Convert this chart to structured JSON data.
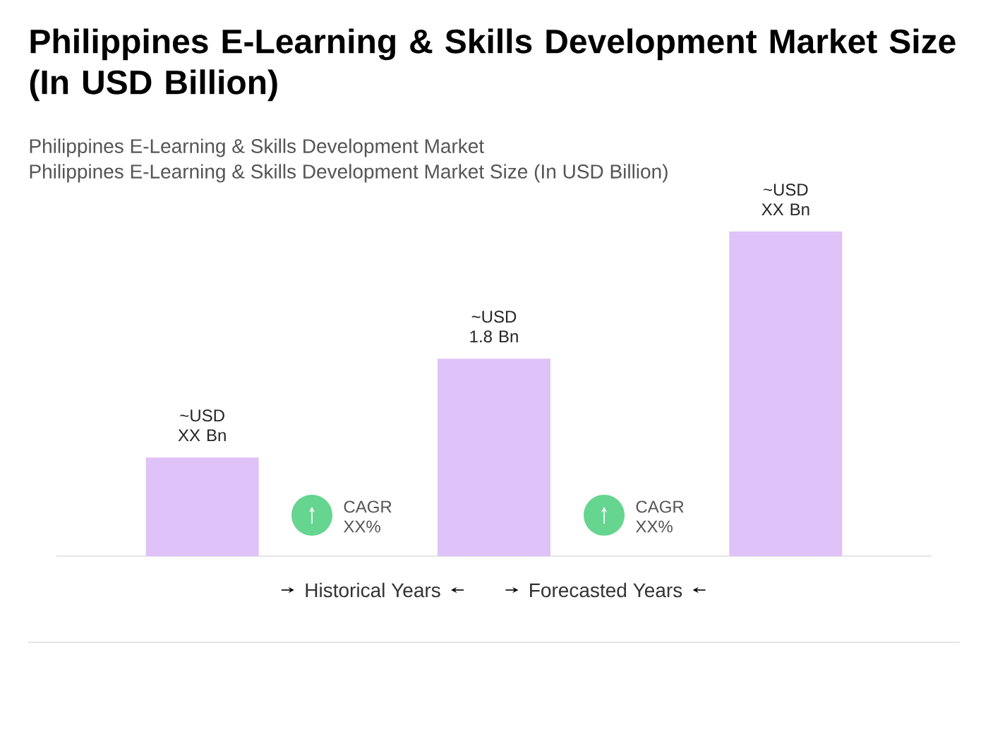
{
  "chart_data": {
    "type": "bar",
    "title": "Philippines E-Learning & Skills Development Market Size (In USD Billion)",
    "subtitle": "Philippines E-Learning & Skills Development Market",
    "categories": [
      null,
      null,
      null
    ],
    "values": [
      0.9,
      1.8,
      2.96
    ],
    "color": "#dfc2f7",
    "value_labels": [
      "~USD XX Bn",
      "~USD 1.8 Bn",
      "~USD XX Bn"
    ],
    "annotations": [
      "Philippines E-Learning & Skills Development Market Size (In USD Billion)",
      "CAGR XX%",
      "CAGR XX%",
      "Historical Years",
      "Forecasted Years"
    ]
  }
}
